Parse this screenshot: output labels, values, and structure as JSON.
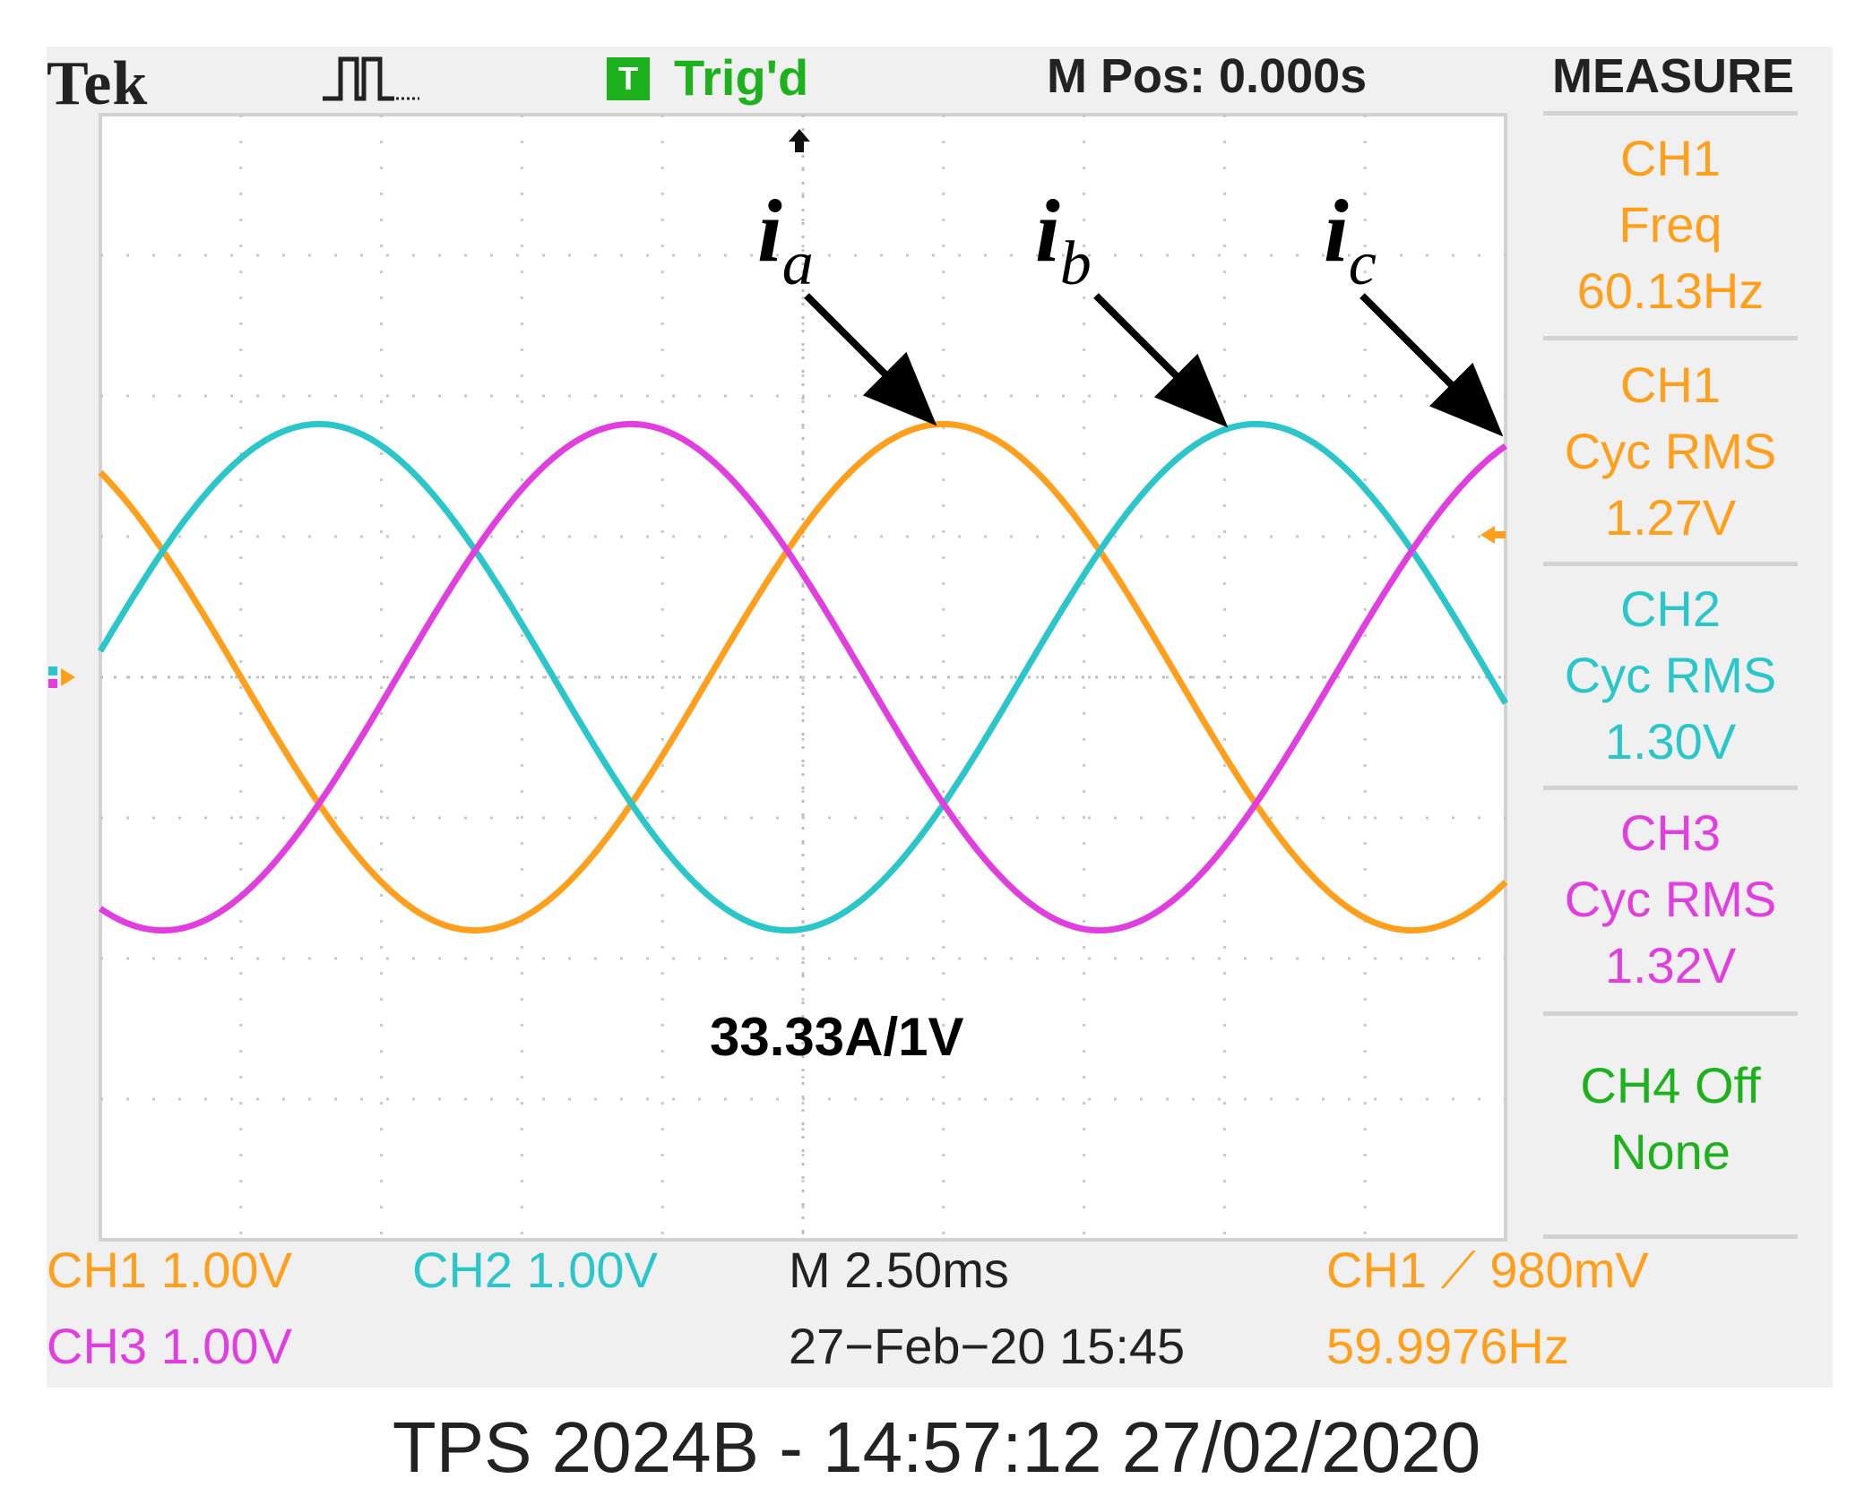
{
  "header": {
    "brand": "Tek",
    "trigger_icon_letter": "T",
    "trigger_status": "Trig'd",
    "position": "M Pos: 0.000s",
    "menu_title": "MEASURE"
  },
  "measurements": [
    {
      "lines": [
        "CH1",
        "Freq",
        "60.13Hz"
      ],
      "color": "#ff9f1c"
    },
    {
      "lines": [
        "CH1",
        "Cyc RMS",
        "1.27V"
      ],
      "color": "#ff9f1c"
    },
    {
      "lines": [
        "CH2",
        "Cyc RMS",
        "1.30V"
      ],
      "color": "#2bc6c9"
    },
    {
      "lines": [
        "CH3",
        "Cyc RMS",
        "1.32V"
      ],
      "color": "#e13ee0"
    },
    {
      "lines": [
        "CH4 Off",
        "None"
      ],
      "color": "#1db21d"
    }
  ],
  "footer": {
    "ch1_scale": "CH1  1.00V",
    "ch2_scale": "CH2  1.00V",
    "ch3_scale": "CH3  1.00V",
    "timebase": "M 2.50ms",
    "datetime": "27−Feb−20 15:45",
    "trigger_setting": "CH1 ⟋ 980mV",
    "trigger_freq": "59.9976Hz"
  },
  "annotations": {
    "phase_a": "i",
    "phase_a_sub": "a",
    "phase_b": "i",
    "phase_b_sub": "b",
    "phase_c": "i",
    "phase_c_sub": "c",
    "scale_note": "33.33A/1V"
  },
  "caption": "TPS 2024B - 14:57:12   27/02/2020",
  "colors": {
    "ch1": "#ff9f1c",
    "ch2": "#2bc6c9",
    "ch3": "#e13ee0",
    "ch4": "#1db21d"
  },
  "chart_data": {
    "type": "line",
    "grid": true,
    "x_unit": "ms",
    "x_range": [
      -12.5,
      12.5
    ],
    "y_unit": "divisions",
    "y_range": [
      -4,
      4
    ],
    "frequency_hz": 60,
    "series": [
      {
        "name": "CH1",
        "label": "i_a",
        "amplitude_div": 1.8,
        "peak_time_ms": 2.5,
        "color": "#ff9f1c"
      },
      {
        "name": "CH2",
        "label": "i_b",
        "amplitude_div": 1.8,
        "peak_time_ms": 8.06,
        "color": "#2bc6c9"
      },
      {
        "name": "CH3",
        "label": "i_c",
        "amplitude_div": 1.8,
        "peak_time_ms": 13.61,
        "color": "#e13ee0"
      }
    ]
  }
}
